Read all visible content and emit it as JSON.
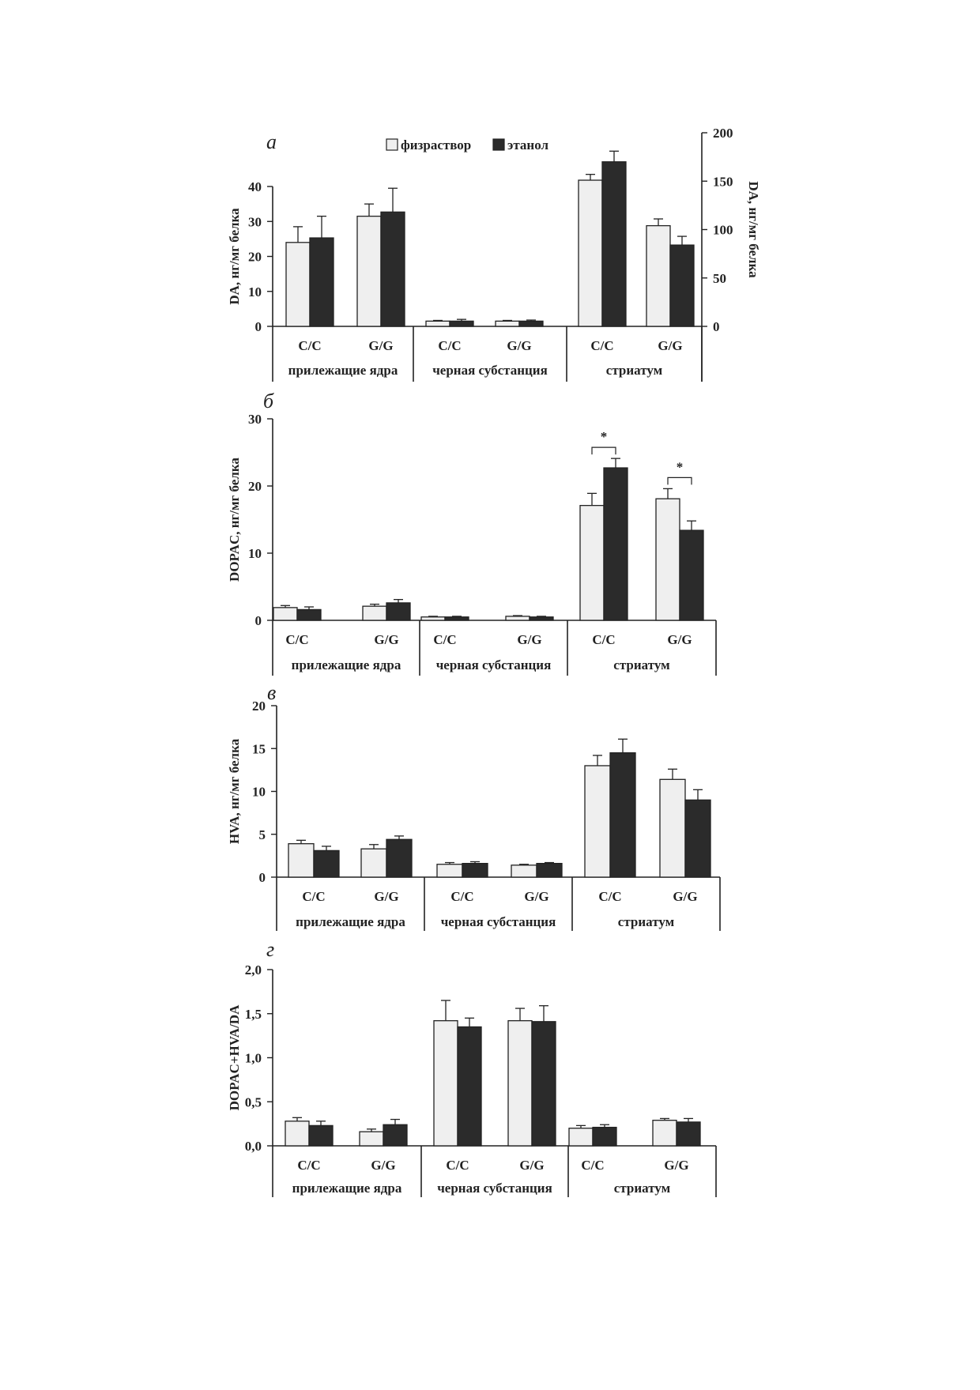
{
  "legend": {
    "items": [
      {
        "label": "физраствор",
        "color": "#efefef"
      },
      {
        "label": "этанол",
        "color": "#2b2b2b"
      }
    ]
  },
  "chart_data": [
    {
      "type": "bar",
      "panel_letter": "а",
      "ylabel": "DA, нг/мг белка",
      "ylim": [
        0,
        40
      ],
      "yticks": [
        "0",
        "10",
        "20",
        "30",
        "40"
      ],
      "y2label": "DA, нг/мг белка",
      "y2lim": [
        0,
        200
      ],
      "y2ticks": [
        "0",
        "50",
        "100",
        "150",
        "200"
      ],
      "y2_applies_to_group": "стриатум",
      "groups": [
        "прилежащие ядра",
        "черная субстанция",
        "стриатум"
      ],
      "categories": [
        "C/C",
        "G/G",
        "C/C",
        "G/G",
        "C/C",
        "G/G"
      ],
      "series": [
        {
          "name": "физраствор",
          "values": [
            24,
            31.5,
            1.5,
            1.5,
            151,
            104
          ],
          "errors": [
            4.5,
            3.5,
            0.2,
            0.2,
            6,
            7
          ]
        },
        {
          "name": "этанол",
          "values": [
            25.3,
            32.7,
            1.5,
            1.5,
            170,
            84
          ],
          "errors": [
            6.2,
            6.8,
            0.5,
            0.3,
            11,
            9
          ]
        }
      ],
      "significance": []
    },
    {
      "type": "bar",
      "panel_letter": "б",
      "ylabel": "DOPAC, нг/мг белка",
      "ylim": [
        0,
        30
      ],
      "yticks": [
        "0",
        "10",
        "20",
        "30"
      ],
      "groups": [
        "прилежащие ядра",
        "черная субстанция",
        "стриатум"
      ],
      "categories": [
        "C/C",
        "G/G",
        "C/C",
        "G/G",
        "C/C",
        "G/G"
      ],
      "series": [
        {
          "name": "физраствор",
          "values": [
            1.9,
            2.1,
            0.5,
            0.6,
            17.1,
            18.1
          ],
          "errors": [
            0.3,
            0.3,
            0.1,
            0.1,
            1.8,
            1.5
          ]
        },
        {
          "name": "этанол",
          "values": [
            1.6,
            2.6,
            0.5,
            0.5,
            22.7,
            13.4
          ],
          "errors": [
            0.4,
            0.5,
            0.1,
            0.1,
            1.4,
            1.4
          ]
        }
      ],
      "significance": [
        {
          "index": 4,
          "label": "*"
        },
        {
          "index": 5,
          "label": "*"
        }
      ]
    },
    {
      "type": "bar",
      "panel_letter": "в",
      "ylabel": "HVA, нг/мг белка",
      "ylim": [
        0,
        20
      ],
      "yticks": [
        "0",
        "5",
        "10",
        "15",
        "20"
      ],
      "groups": [
        "прилежащие ядра",
        "черная субстанция",
        "стриатум"
      ],
      "categories": [
        "C/C",
        "G/G",
        "C/C",
        "G/G",
        "C/C",
        "G/G"
      ],
      "series": [
        {
          "name": "физраствор",
          "values": [
            3.9,
            3.3,
            1.5,
            1.4,
            13.0,
            11.4
          ],
          "errors": [
            0.4,
            0.5,
            0.2,
            0.1,
            1.2,
            1.2
          ]
        },
        {
          "name": "этанол",
          "values": [
            3.1,
            4.4,
            1.6,
            1.6,
            14.5,
            9.0
          ],
          "errors": [
            0.5,
            0.4,
            0.2,
            0.1,
            1.6,
            1.2
          ]
        }
      ],
      "significance": []
    },
    {
      "type": "bar",
      "panel_letter": "г",
      "ylabel": "DOPAC+HVA/DA",
      "ylim": [
        0,
        2
      ],
      "yticks": [
        "0,0",
        "0,5",
        "1,0",
        "1,5",
        "2,0"
      ],
      "groups": [
        "прилежащие ядра",
        "черная субстанция",
        "стриатум"
      ],
      "categories": [
        "C/C",
        "G/G",
        "C/C",
        "G/G",
        "C/C",
        "G/G"
      ],
      "series": [
        {
          "name": "физраствор",
          "values": [
            0.28,
            0.16,
            1.42,
            1.42,
            0.2,
            0.29
          ],
          "errors": [
            0.04,
            0.03,
            0.23,
            0.14,
            0.03,
            0.02
          ]
        },
        {
          "name": "этанол",
          "values": [
            0.23,
            0.24,
            1.35,
            1.41,
            0.21,
            0.27
          ],
          "errors": [
            0.05,
            0.06,
            0.1,
            0.18,
            0.03,
            0.04
          ]
        }
      ],
      "significance": []
    }
  ]
}
